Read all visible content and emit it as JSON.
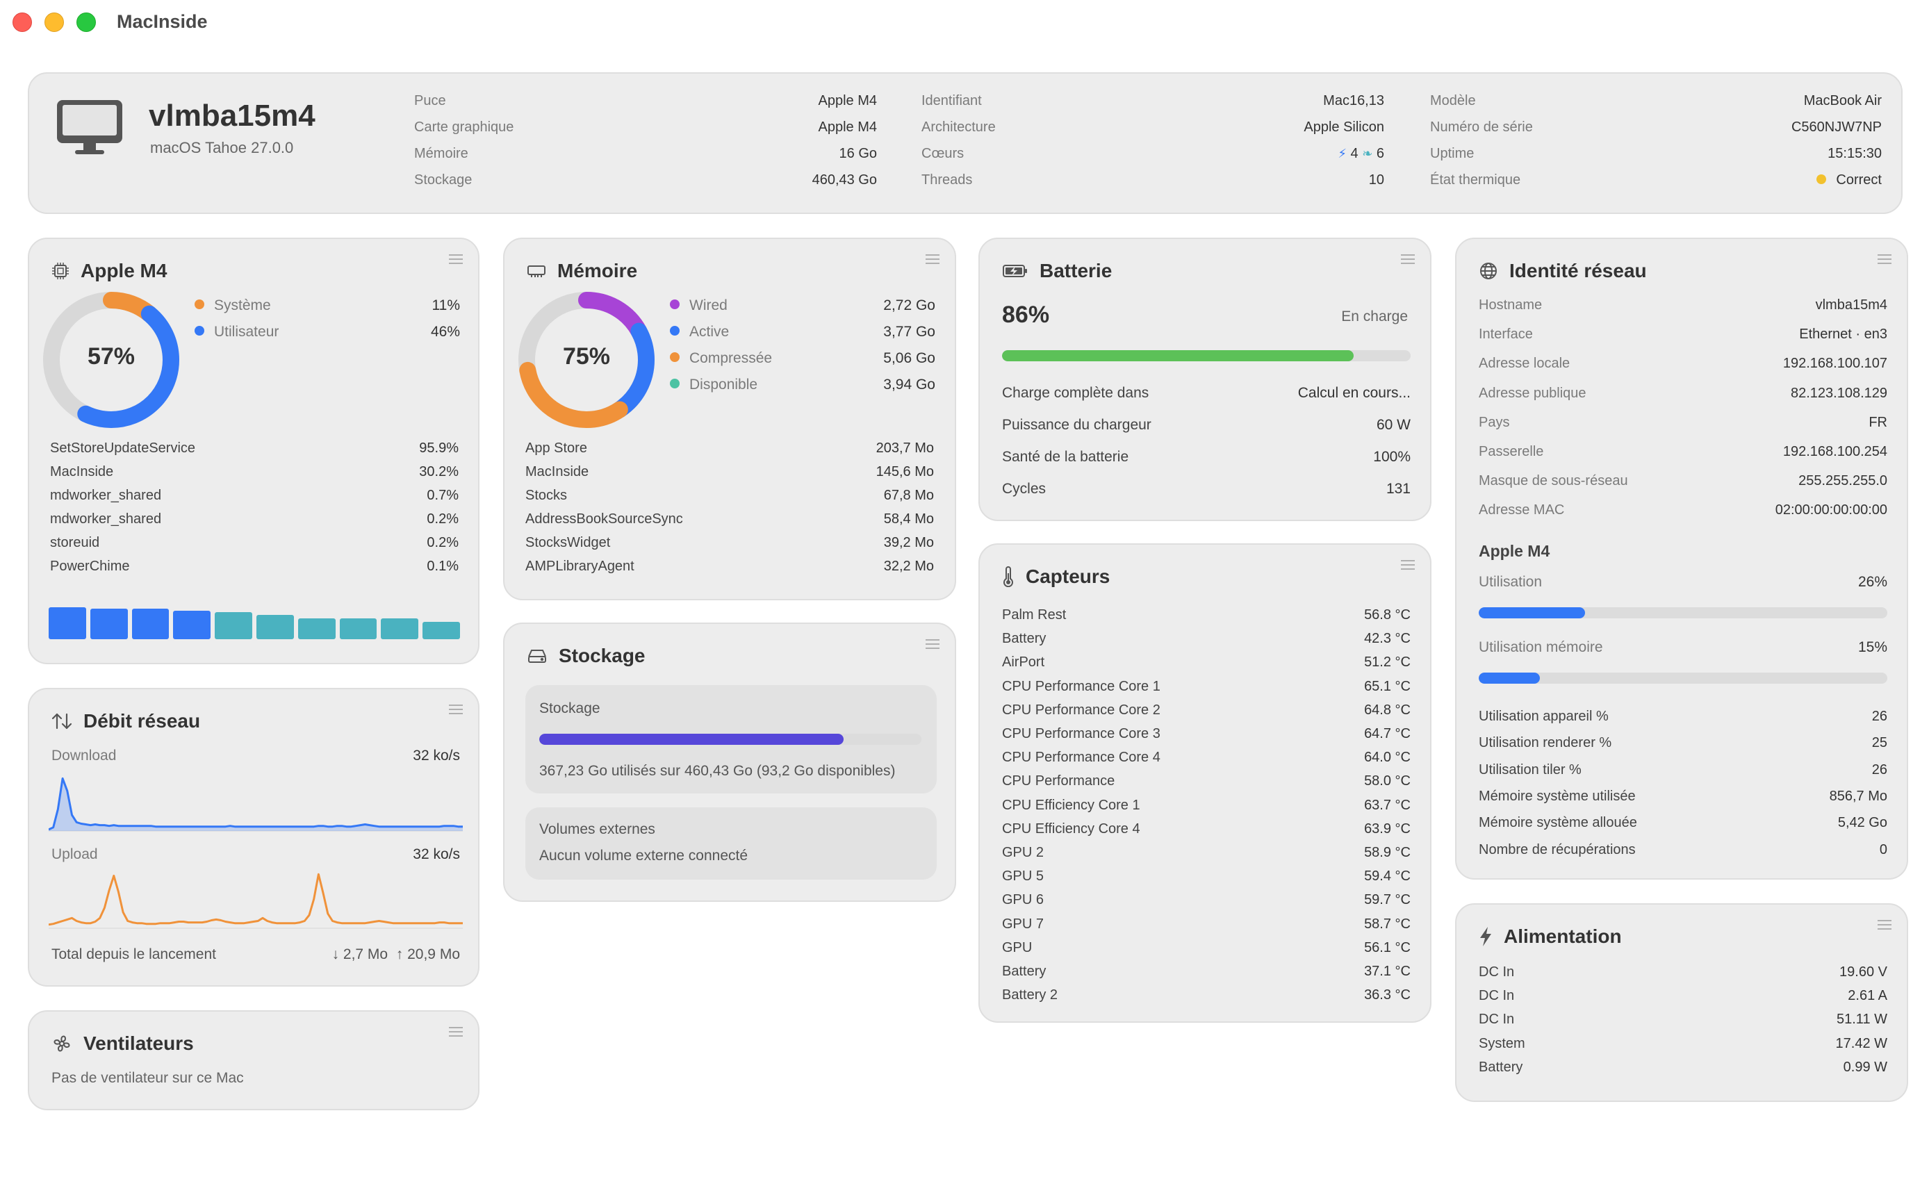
{
  "window": {
    "title": "MacInside"
  },
  "header": {
    "hostname": "vlmba15m4",
    "os": "macOS Tahoe 27.0.0",
    "col1": [
      {
        "label": "Puce",
        "value": "Apple M4"
      },
      {
        "label": "Carte graphique",
        "value": "Apple M4"
      },
      {
        "label": "Mémoire",
        "value": "16 Go"
      },
      {
        "label": "Stockage",
        "value": "460,43 Go"
      }
    ],
    "col2": [
      {
        "label": "Identifiant",
        "value": "Mac16,13"
      },
      {
        "label": "Architecture",
        "value": "Apple Silicon"
      },
      {
        "label": "Cœurs",
        "perf": "4",
        "eff": "6"
      },
      {
        "label": "Threads",
        "value": "10"
      }
    ],
    "col3": [
      {
        "label": "Modèle",
        "value": "MacBook Air"
      },
      {
        "label": "Numéro de série",
        "value": "C560NJW7NP"
      },
      {
        "label": "Uptime",
        "value": "15:15:30"
      },
      {
        "label": "État thermique",
        "value": "Correct",
        "status_color": "#f2c12e"
      }
    ]
  },
  "cpu": {
    "title": "Apple M4",
    "percent_label": "57%",
    "legend": [
      {
        "label": "Système",
        "value": "11%",
        "color": "#f0923a",
        "fraction": 0.11
      },
      {
        "label": "Utilisateur",
        "value": "46%",
        "color": "#3478f6",
        "fraction": 0.46
      }
    ],
    "processes": [
      {
        "name": "SetStoreUpdateService",
        "value": "95.9%"
      },
      {
        "name": "MacInside",
        "value": "30.2%"
      },
      {
        "name": "mdworker_shared",
        "value": "0.7%"
      },
      {
        "name": "mdworker_shared",
        "value": "0.2%"
      },
      {
        "name": "storeuid",
        "value": "0.2%"
      },
      {
        "name": "PowerChime",
        "value": "0.1%"
      }
    ],
    "cores": [
      {
        "level": 1.0,
        "color": "#3478f6"
      },
      {
        "level": 0.95,
        "color": "#3478f6"
      },
      {
        "level": 0.95,
        "color": "#3478f6"
      },
      {
        "level": 0.9,
        "color": "#3478f6"
      },
      {
        "level": 0.85,
        "color": "#4ab2c0"
      },
      {
        "level": 0.75,
        "color": "#4ab2c0"
      },
      {
        "level": 0.65,
        "color": "#4ab2c0"
      },
      {
        "level": 0.65,
        "color": "#4ab2c0"
      },
      {
        "level": 0.65,
        "color": "#4ab2c0"
      },
      {
        "level": 0.55,
        "color": "#4ab2c0"
      }
    ]
  },
  "memory": {
    "title": "Mémoire",
    "percent_label": "75%",
    "legend": [
      {
        "label": "Wired",
        "value": "2,72 Go",
        "color": "#a744d6",
        "fraction": 0.17
      },
      {
        "label": "Active",
        "value": "3,77 Go",
        "color": "#3478f6",
        "fraction": 0.236
      },
      {
        "label": "Compressée",
        "value": "5,06 Go",
        "color": "#f0923a",
        "fraction": 0.316
      },
      {
        "label": "Disponible",
        "value": "3,94 Go",
        "color": "#4cc2a3",
        "fraction": 0.0
      }
    ],
    "processes": [
      {
        "name": "App Store",
        "value": "203,7 Mo"
      },
      {
        "name": "MacInside",
        "value": "145,6 Mo"
      },
      {
        "name": "Stocks",
        "value": "67,8 Mo"
      },
      {
        "name": "AddressBookSourceSync",
        "value": "58,4 Mo"
      },
      {
        "name": "StocksWidget",
        "value": "39,2 Mo"
      },
      {
        "name": "AMPLibraryAgent",
        "value": "32,2 Mo"
      }
    ]
  },
  "battery": {
    "title": "Batterie",
    "percent_label": "86%",
    "level": 0.86,
    "status": "En charge",
    "rows": [
      {
        "label": "Charge complète dans",
        "value": "Calcul en cours..."
      },
      {
        "label": "Puissance du chargeur",
        "value": "60 W"
      },
      {
        "label": "Santé de la batterie",
        "value": "100%"
      },
      {
        "label": "Cycles",
        "value": "131"
      }
    ]
  },
  "network_identity": {
    "title": "Identité réseau",
    "rows": [
      {
        "label": "Hostname",
        "value": "vlmba15m4"
      },
      {
        "label": "Interface",
        "value": "Ethernet · en3"
      },
      {
        "label": "Adresse locale",
        "value": "192.168.100.107"
      },
      {
        "label": "Adresse publique",
        "value": "82.123.108.129"
      },
      {
        "label": "Pays",
        "value": "FR"
      },
      {
        "label": "Passerelle",
        "value": "192.168.100.254"
      },
      {
        "label": "Masque de sous-réseau",
        "value": "255.255.255.0"
      },
      {
        "label": "Adresse MAC",
        "value": "02:00:00:00:00:00"
      }
    ],
    "gpu_title": "Apple M4",
    "utilisation_label": "Utilisation",
    "utilisation_value": "26%",
    "utilisation_level": 0.26,
    "mem_label": "Utilisation mémoire",
    "mem_value": "15%",
    "mem_level": 0.15,
    "stats": [
      {
        "label": "Utilisation appareil %",
        "value": "26"
      },
      {
        "label": "Utilisation renderer %",
        "value": "25"
      },
      {
        "label": "Utilisation tiler %",
        "value": "26"
      },
      {
        "label": "Mémoire système utilisée",
        "value": "856,7 Mo"
      },
      {
        "label": "Mémoire système allouée",
        "value": "5,42 Go"
      },
      {
        "label": "Nombre de récupérations",
        "value": "0"
      }
    ]
  },
  "network_rate": {
    "title": "Débit réseau",
    "download_label": "Download",
    "download_value": "32 ko/s",
    "upload_label": "Upload",
    "upload_value": "32 ko/s",
    "total_label": "Total depuis le lancement",
    "total_down": "↓ 2,7 Mo",
    "total_up": "↑ 20,9 Mo",
    "download_series": [
      2,
      5,
      30,
      72,
      55,
      22,
      12,
      10,
      9,
      8,
      9,
      8,
      8,
      7,
      8,
      7,
      7,
      7,
      7,
      7,
      7,
      7,
      7,
      6,
      6,
      6,
      6,
      6,
      6,
      6,
      6,
      6,
      6,
      6,
      6,
      6,
      6,
      6,
      6,
      7,
      6,
      6,
      6,
      6,
      6,
      6,
      6,
      6,
      6,
      6,
      6,
      6,
      6,
      6,
      6,
      6,
      6,
      6,
      7,
      7,
      6,
      6,
      7,
      7,
      6,
      6,
      7,
      8,
      9,
      8,
      7,
      6,
      6,
      6,
      6,
      6,
      6,
      6,
      6,
      6,
      6,
      6,
      6,
      6,
      6,
      7,
      7,
      7,
      6,
      6
    ],
    "upload_series": [
      5,
      6,
      8,
      10,
      12,
      14,
      10,
      8,
      7,
      7,
      9,
      14,
      28,
      52,
      72,
      50,
      22,
      10,
      8,
      7,
      7,
      6,
      6,
      6,
      7,
      7,
      7,
      8,
      9,
      9,
      8,
      8,
      8,
      8,
      9,
      11,
      12,
      11,
      9,
      8,
      7,
      7,
      7,
      8,
      9,
      10,
      14,
      10,
      8,
      7,
      7,
      7,
      7,
      7,
      8,
      10,
      18,
      40,
      74,
      48,
      20,
      10,
      8,
      7,
      7,
      7,
      7,
      7,
      7,
      8,
      9,
      10,
      9,
      8,
      7,
      7,
      7,
      7,
      7,
      7,
      7,
      7,
      7,
      7,
      8,
      8,
      7,
      7,
      7,
      7
    ]
  },
  "storage": {
    "title": "Stockage",
    "box_title": "Stockage",
    "used_fraction": 0.797,
    "summary": "367,23 Go utilisés sur 460,43 Go (93,2 Go disponibles)",
    "external_title": "Volumes externes",
    "external_text": "Aucun volume externe connecté"
  },
  "sensors": {
    "title": "Capteurs",
    "rows": [
      {
        "label": "Palm Rest",
        "value": "56.8 °C"
      },
      {
        "label": "Battery",
        "value": "42.3 °C"
      },
      {
        "label": "AirPort",
        "value": "51.2 °C"
      },
      {
        "label": "CPU Performance Core 1",
        "value": "65.1 °C"
      },
      {
        "label": "CPU Performance Core 2",
        "value": "64.8 °C"
      },
      {
        "label": "CPU Performance Core 3",
        "value": "64.7 °C"
      },
      {
        "label": "CPU Performance Core 4",
        "value": "64.0 °C"
      },
      {
        "label": "CPU Performance",
        "value": "58.0 °C"
      },
      {
        "label": "CPU Efficiency Core 1",
        "value": "63.7 °C"
      },
      {
        "label": "CPU Efficiency Core 4",
        "value": "63.9 °C"
      },
      {
        "label": "GPU 2",
        "value": "58.9 °C"
      },
      {
        "label": "GPU 5",
        "value": "59.4 °C"
      },
      {
        "label": "GPU 6",
        "value": "59.7 °C"
      },
      {
        "label": "GPU 7",
        "value": "58.7 °C"
      },
      {
        "label": "GPU",
        "value": "56.1 °C"
      },
      {
        "label": "Battery",
        "value": "37.1 °C"
      },
      {
        "label": "Battery 2",
        "value": "36.3 °C"
      }
    ]
  },
  "fans": {
    "title": "Ventilateurs",
    "text": "Pas de ventilateur sur ce Mac"
  },
  "power": {
    "title": "Alimentation",
    "rows": [
      {
        "label": "DC In",
        "value": "19.60 V"
      },
      {
        "label": "DC In",
        "value": "2.61 A"
      },
      {
        "label": "DC In",
        "value": "51.11 W"
      },
      {
        "label": "System",
        "value": "17.42 W"
      },
      {
        "label": "Battery",
        "value": "0.99 W"
      }
    ]
  }
}
